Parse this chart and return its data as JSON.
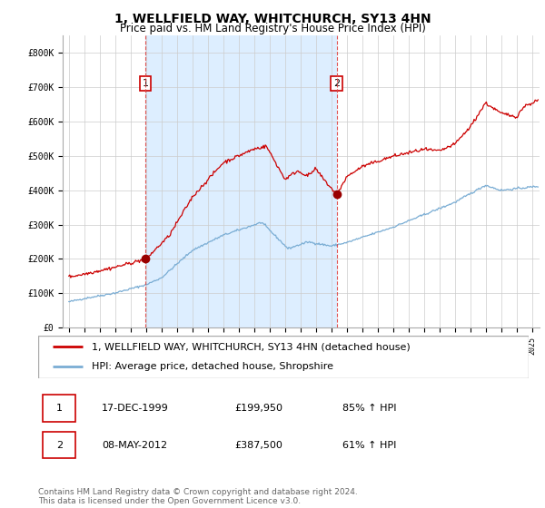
{
  "title1": "1, WELLFIELD WAY, WHITCHURCH, SY13 4HN",
  "title2": "Price paid vs. HM Land Registry's House Price Index (HPI)",
  "ylim": [
    0,
    850000
  ],
  "yticks": [
    0,
    100000,
    200000,
    300000,
    400000,
    500000,
    600000,
    700000,
    800000
  ],
  "ytick_labels": [
    "£0",
    "£100K",
    "£200K",
    "£300K",
    "£400K",
    "£500K",
    "£600K",
    "£700K",
    "£800K"
  ],
  "xlim_left": 1994.6,
  "xlim_right": 2025.5,
  "sale1_date": 1999.96,
  "sale1_price": 199950,
  "sale2_date": 2012.36,
  "sale2_price": 387500,
  "line1_color": "#cc0000",
  "line2_color": "#7aadd4",
  "marker_color": "#990000",
  "vline_color": "#dd4444",
  "shade_color": "#ddeeff",
  "grid_color": "#cccccc",
  "bg_color": "#ffffff",
  "legend_label1": "1, WELLFIELD WAY, WHITCHURCH, SY13 4HN (detached house)",
  "legend_label2": "HPI: Average price, detached house, Shropshire",
  "table_row1": [
    "1",
    "17-DEC-1999",
    "£199,950",
    "85% ↑ HPI"
  ],
  "table_row2": [
    "2",
    "08-MAY-2012",
    "£387,500",
    "61% ↑ HPI"
  ],
  "footer": "Contains HM Land Registry data © Crown copyright and database right 2024.\nThis data is licensed under the Open Government Licence v3.0.",
  "title_fontsize": 10,
  "subtitle_fontsize": 8.5,
  "tick_fontsize": 7,
  "legend_fontsize": 8,
  "table_fontsize": 8,
  "footer_fontsize": 6.5
}
